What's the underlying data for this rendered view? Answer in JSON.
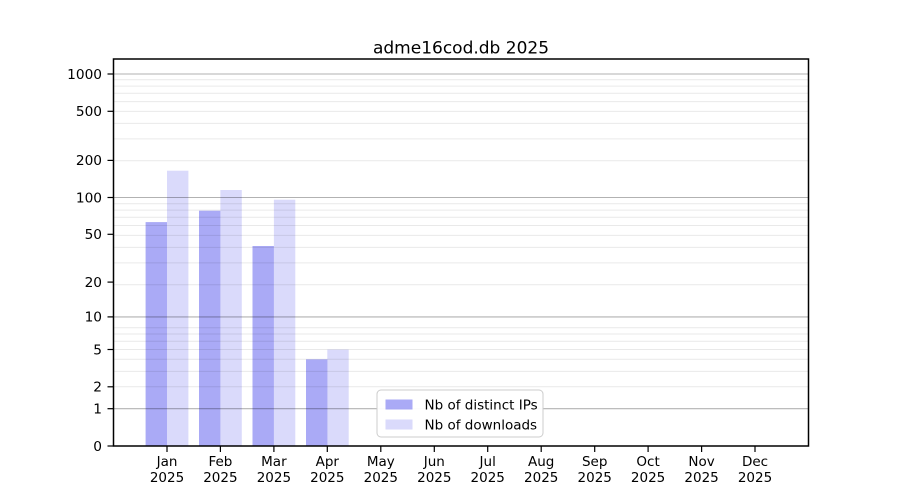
{
  "figure": {
    "background": "#ffffff"
  },
  "chart_data": {
    "type": "bar",
    "title": "adme16cod.db 2025",
    "year": "2025",
    "months": [
      "Jan",
      "Feb",
      "Mar",
      "Apr",
      "May",
      "Jun",
      "Jul",
      "Aug",
      "Sep",
      "Oct",
      "Nov",
      "Dec"
    ],
    "series": [
      {
        "name": "Nb of distinct IPs",
        "base_color": "#5555ee",
        "fill_opacity": 0.5,
        "values": [
          63,
          78,
          40,
          4,
          0,
          0,
          0,
          0,
          0,
          0,
          0,
          0
        ]
      },
      {
        "name": "Nb of downloads",
        "base_color": "#5555ee",
        "fill_opacity": 0.22,
        "values": [
          165,
          115,
          96,
          5,
          0,
          0,
          0,
          0,
          0,
          0,
          0,
          0
        ]
      }
    ],
    "y_axis": {
      "scale": "log1p",
      "ticks": [
        0,
        1,
        2,
        5,
        10,
        20,
        50,
        100,
        200,
        500,
        1000
      ],
      "major_gridlines": [
        1,
        10,
        100,
        1000
      ],
      "minor_gridlines": [
        2,
        3,
        4,
        5,
        6,
        7,
        8,
        19,
        29,
        39,
        49,
        59,
        69,
        79,
        89,
        199,
        299,
        399,
        499,
        599,
        699,
        799,
        899
      ],
      "range": [
        0,
        1320
      ]
    },
    "grid": {
      "major_color": "rgba(0,0,0,0.30)",
      "minor_color": "rgba(0,0,0,0.085)"
    },
    "legend": {
      "position": "bottom-center",
      "border_color": "#cccccc",
      "background": "#ffffff"
    }
  }
}
